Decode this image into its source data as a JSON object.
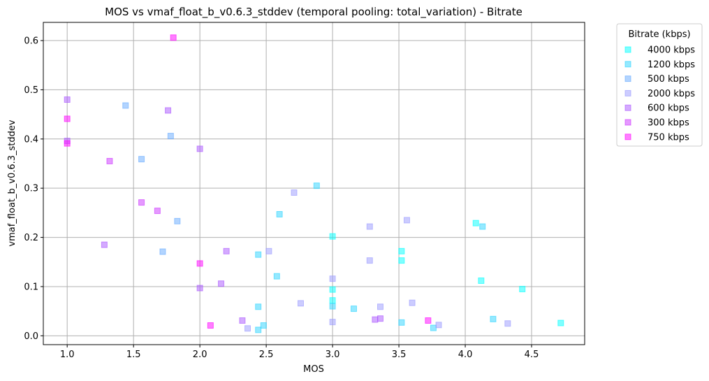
{
  "chart_data": {
    "type": "scatter",
    "title": "MOS vs vmaf_float_b_v0.6.3_stddev (temporal pooling: total_variation) - Bitrate",
    "xlabel": "MOS",
    "ylabel": "vmaf_float_b_v0.6.3_stddev",
    "xlim": [
      0.82,
      4.9
    ],
    "ylim": [
      -0.018,
      0.637
    ],
    "xticks": [
      1.0,
      1.5,
      2.0,
      2.5,
      3.0,
      3.5,
      4.0,
      4.5
    ],
    "yticks": [
      0.0,
      0.1,
      0.2,
      0.3,
      0.4,
      0.5,
      0.6
    ],
    "xtick_labels": [
      "1.0",
      "1.5",
      "2.0",
      "2.5",
      "3.0",
      "3.5",
      "4.0",
      "4.5"
    ],
    "ytick_labels": [
      "0.0",
      "0.1",
      "0.2",
      "0.3",
      "0.4",
      "0.5",
      "0.6"
    ],
    "grid": true,
    "marker": "square",
    "legend": {
      "title": "Bitrate (kbps)",
      "placement": "outside-top-right"
    },
    "series": [
      {
        "name": "4000 kbps",
        "color": "#00ffff",
        "points": [
          [
            3.0,
            0.202
          ],
          [
            3.0,
            0.094
          ],
          [
            3.0,
            0.072
          ],
          [
            3.52,
            0.172
          ],
          [
            3.52,
            0.153
          ],
          [
            4.08,
            0.229
          ],
          [
            4.12,
            0.112
          ],
          [
            4.43,
            0.095
          ],
          [
            4.72,
            0.026
          ]
        ]
      },
      {
        "name": "1200 kbps",
        "color": "#2bd4ff",
        "points": [
          [
            2.88,
            0.305
          ],
          [
            2.6,
            0.247
          ],
          [
            2.58,
            0.121
          ],
          [
            2.44,
            0.165
          ],
          [
            2.44,
            0.059
          ],
          [
            2.48,
            0.021
          ],
          [
            2.44,
            0.012
          ],
          [
            3.0,
            0.06
          ],
          [
            3.16,
            0.055
          ],
          [
            3.52,
            0.027
          ],
          [
            3.76,
            0.016
          ],
          [
            4.13,
            0.222
          ],
          [
            4.21,
            0.034
          ]
        ]
      },
      {
        "name": "500 kbps",
        "color": "#66aaff",
        "points": [
          [
            1.44,
            0.468
          ],
          [
            1.78,
            0.406
          ],
          [
            1.56,
            0.359
          ],
          [
            1.83,
            0.233
          ],
          [
            1.72,
            0.171
          ]
        ]
      },
      {
        "name": "2000 kbps",
        "color": "#9999ff",
        "points": [
          [
            2.71,
            0.291
          ],
          [
            2.52,
            0.172
          ],
          [
            2.36,
            0.015
          ],
          [
            2.76,
            0.066
          ],
          [
            3.0,
            0.116
          ],
          [
            3.0,
            0.028
          ],
          [
            3.28,
            0.222
          ],
          [
            3.28,
            0.153
          ],
          [
            3.36,
            0.059
          ],
          [
            3.56,
            0.235
          ],
          [
            3.6,
            0.067
          ],
          [
            3.8,
            0.022
          ],
          [
            4.32,
            0.025
          ]
        ]
      },
      {
        "name": "600 kbps",
        "color": "#aa55ff",
        "points": [
          [
            1.0,
            0.48
          ],
          [
            1.0,
            0.396
          ],
          [
            1.76,
            0.458
          ],
          [
            2.0,
            0.38
          ],
          [
            1.28,
            0.185
          ],
          [
            2.2,
            0.172
          ],
          [
            2.0,
            0.097
          ],
          [
            2.16,
            0.106
          ],
          [
            2.32,
            0.031
          ],
          [
            3.36,
            0.035
          ],
          [
            3.32,
            0.033
          ]
        ]
      },
      {
        "name": "300 kbps",
        "color": "#cc33ff",
        "points": [
          [
            1.32,
            0.355
          ],
          [
            1.56,
            0.271
          ],
          [
            1.68,
            0.254
          ]
        ]
      },
      {
        "name": "750 kbps",
        "color": "#ff00ff",
        "points": [
          [
            1.8,
            0.606
          ],
          [
            1.0,
            0.441
          ],
          [
            1.0,
            0.391
          ],
          [
            2.0,
            0.147
          ],
          [
            2.08,
            0.021
          ],
          [
            3.72,
            0.031
          ]
        ]
      }
    ]
  }
}
